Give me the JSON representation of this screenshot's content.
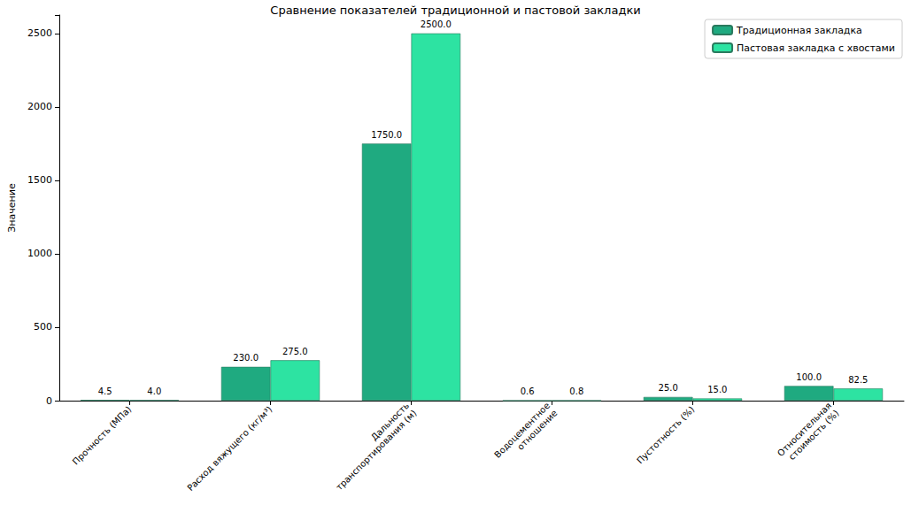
{
  "chart_data": {
    "type": "bar",
    "title": "Сравнение показателей традиционной и пастовой закладки",
    "y_label": "Значение",
    "categories": [
      "Прочность (МПа)",
      "Расход вяжущего (кг/м³)",
      "Дальность\nтранспортирования (м)",
      "Водоцементное\nотношение",
      "Пустотность (%)",
      "Относительная\nстоимость (%)"
    ],
    "series": [
      {
        "name": "Традиционная закладка",
        "color": "#1faa80",
        "values": [
          4.5,
          230,
          1750,
          0.6,
          25,
          100
        ],
        "value_labels": [
          "4.5",
          "230.0",
          "1750.0",
          "0.6",
          "25.0",
          "100.0"
        ]
      },
      {
        "name": "Пастовая закладка с хвостами",
        "color": "#2de3a2",
        "values": [
          4.0,
          275,
          2500,
          0.8,
          15,
          82.5
        ],
        "value_labels": [
          "4.0",
          "275.0",
          "2500.0",
          "0.8",
          "15.0",
          "82.5"
        ]
      }
    ],
    "ylim": [
      0,
      2625
    ],
    "yticks": [
      0,
      500,
      1000,
      1500,
      2000,
      2500
    ],
    "grid": false,
    "legend": "upper right",
    "data_labels": true
  }
}
